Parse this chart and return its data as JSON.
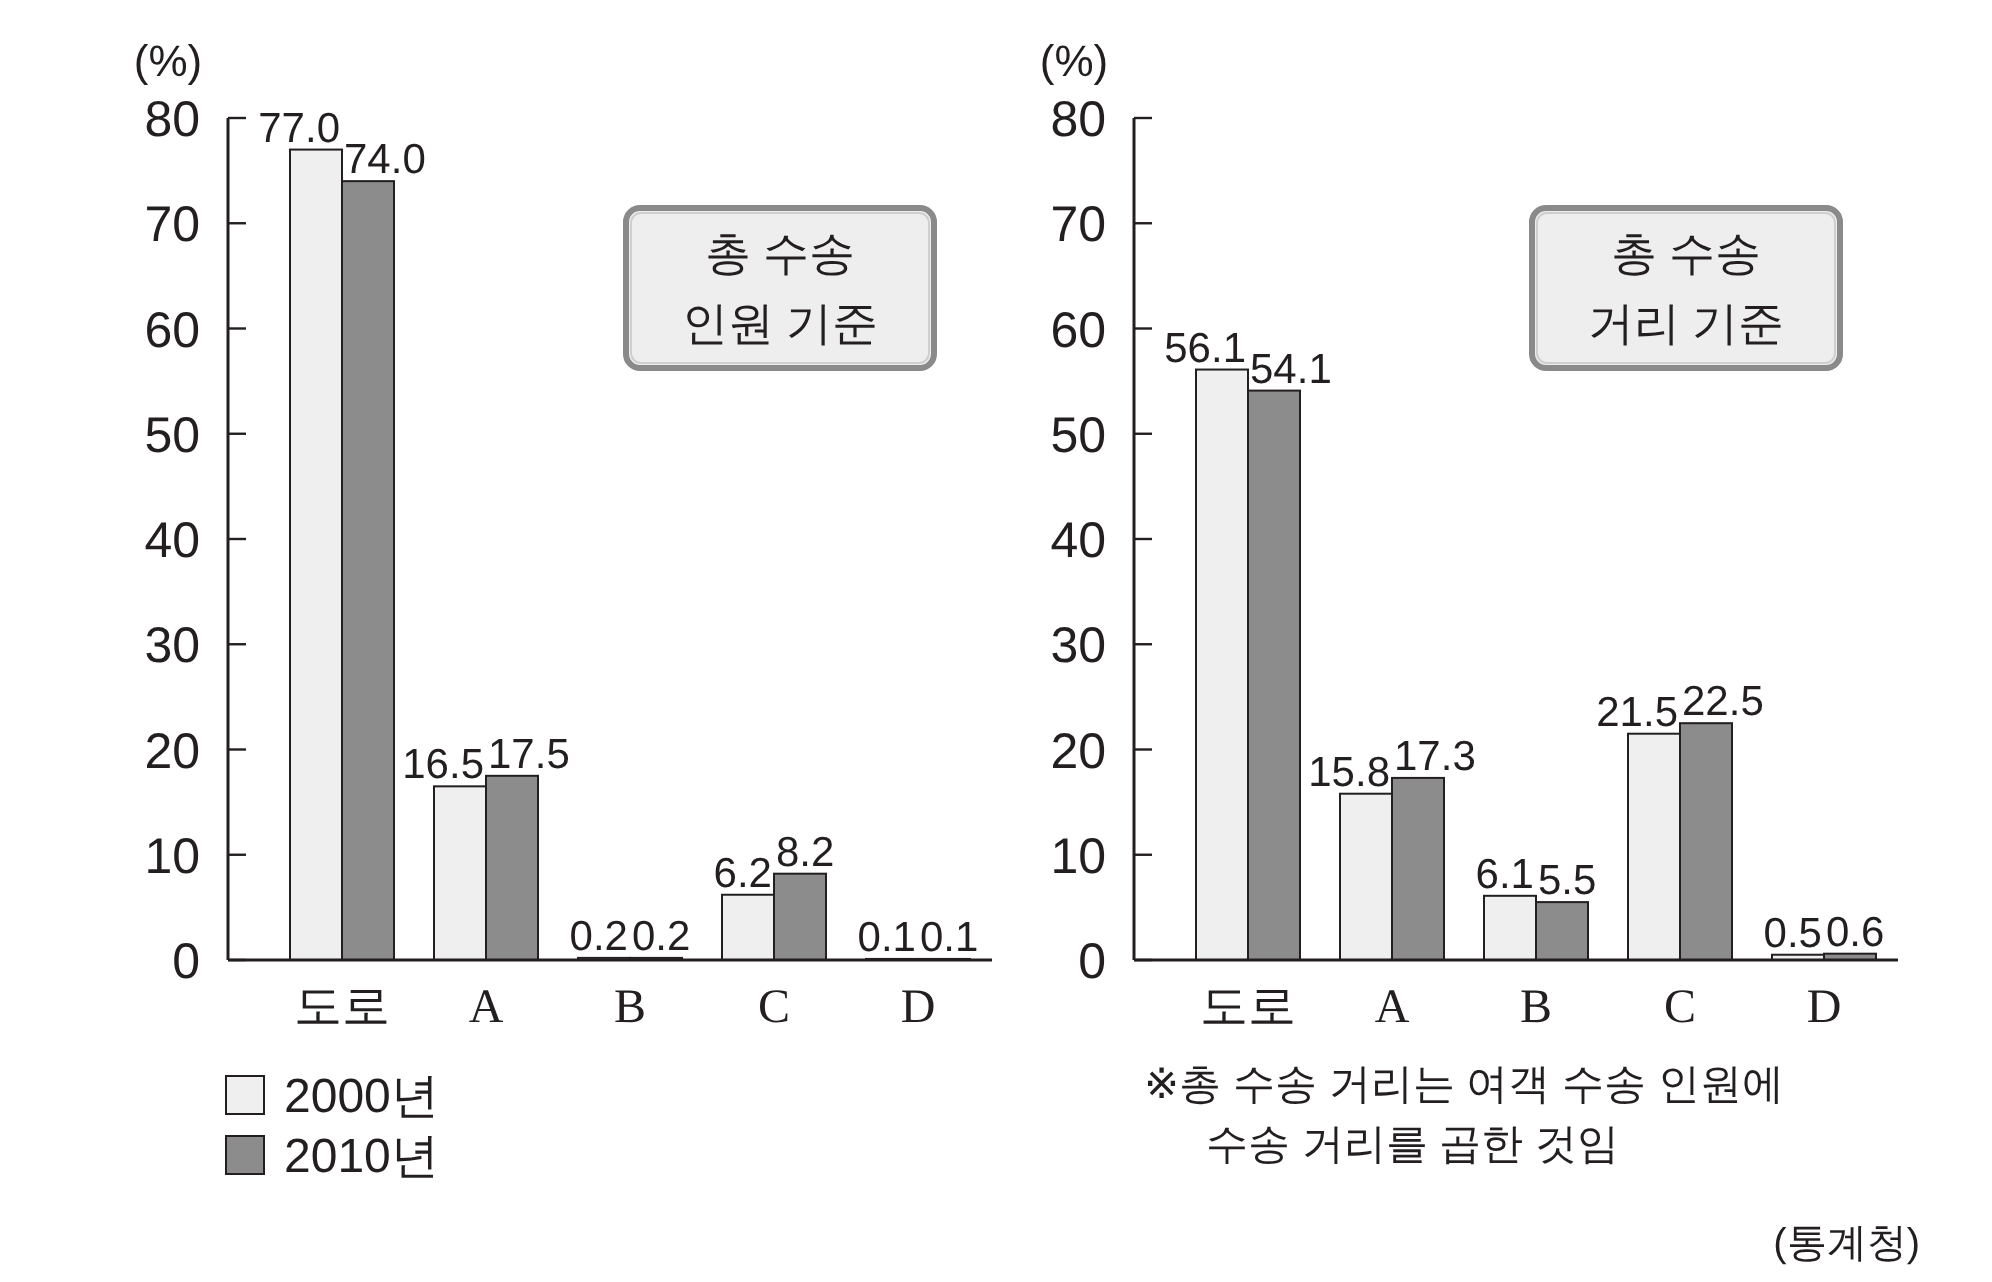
{
  "chart_data": [
    {
      "type": "bar",
      "ylabel": "(%)",
      "categories": [
        "도로",
        "A",
        "B",
        "C",
        "D"
      ],
      "series": [
        {
          "name": "2000년",
          "color": "#efefef",
          "values": [
            77.0,
            16.5,
            0.2,
            6.2,
            0.1
          ],
          "value_labels": [
            "77.0",
            "16.5",
            "0.2",
            "6.2",
            "0.1"
          ]
        },
        {
          "name": "2010년",
          "color": "#8c8c8c",
          "values": [
            74.0,
            17.5,
            0.2,
            8.2,
            0.1
          ],
          "value_labels": [
            "74.0",
            "17.5",
            "0.2",
            "8.2",
            "0.1"
          ]
        }
      ],
      "ylim": [
        0,
        80
      ],
      "yticks": [
        0,
        10,
        20,
        30,
        40,
        50,
        60,
        70,
        80
      ],
      "legend": "bottom left",
      "annotations": [
        "총 수송 인원 기준"
      ]
    },
    {
      "type": "bar",
      "ylabel": "(%)",
      "categories": [
        "도로",
        "A",
        "B",
        "C",
        "D"
      ],
      "series": [
        {
          "color": "#efefef",
          "values": [
            56.1,
            15.8,
            6.1,
            21.5,
            0.5
          ],
          "value_labels": [
            "56.1",
            "15.8",
            "6.1",
            "21.5",
            "0.5"
          ]
        },
        {
          "color": "#8c8c8c",
          "values": [
            54.1,
            17.3,
            5.5,
            22.5,
            0.6
          ],
          "value_labels": [
            "54.1",
            "17.3",
            "5.5",
            "22.5",
            "0.6"
          ]
        }
      ],
      "ylim": [
        0,
        80
      ],
      "yticks": [
        0,
        10,
        20,
        30,
        40,
        50,
        60,
        70,
        80
      ],
      "annotations": [
        "총 수송 거리 기준",
        "※총 수송 거리는 여객 수송 인원에 수송 거리를 곱한 것임",
        "(통계청)"
      ]
    }
  ]
}
